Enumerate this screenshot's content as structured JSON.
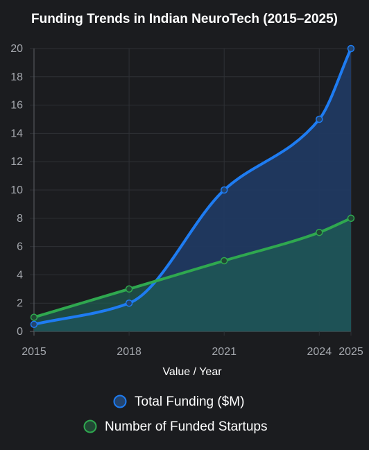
{
  "chart_data": {
    "type": "line",
    "title": "Funding Trends in Indian NeuroTech (2015–2025)",
    "xlabel": "Value / Year",
    "ylabel": "",
    "x": [
      "2015",
      "2018",
      "2021",
      "2024",
      "2025"
    ],
    "ylim": [
      0,
      20
    ],
    "yticks": [
      "0",
      "2",
      "4",
      "6",
      "8",
      "10",
      "12",
      "14",
      "16",
      "18",
      "20"
    ],
    "grid": true,
    "legend_position": "bottom",
    "series": [
      {
        "name": "Total Funding ($M)",
        "values": [
          0.5,
          2,
          10,
          15,
          20
        ],
        "color": "#1e7cf2",
        "fill": "#1f3a63"
      },
      {
        "name": "Number of Funded Startups",
        "values": [
          1,
          3,
          5,
          7,
          8
        ],
        "color": "#2fa84f",
        "fill": "#1f5d53"
      }
    ]
  }
}
